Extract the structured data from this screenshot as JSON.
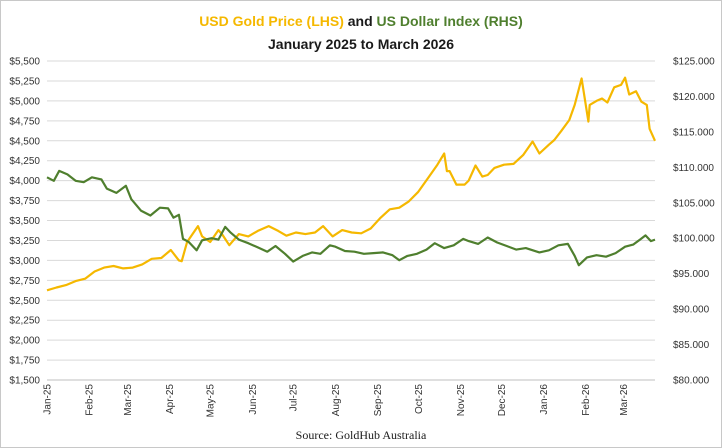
{
  "title": {
    "part1": "USD Gold Price (LHS)",
    "part2": " and ",
    "part3": "US Dollar Index (RHS)"
  },
  "subtitle": "January 2025 to March 2026",
  "source": "Source: GoldHub Australia",
  "colors": {
    "gold": "#f5b800",
    "dxy": "#4f7f2e",
    "grid": "#d9d9d9"
  },
  "chart_data": {
    "type": "line",
    "title": "USD Gold Price (LHS) and US Dollar Index (RHS)",
    "subtitle": "January 2025 to March 2026",
    "x_range": [
      "2025-01-01",
      "2026-03-24"
    ],
    "y_left": {
      "min": 1500,
      "max": 5500,
      "ticks": [
        "$1,500",
        "$1,750",
        "$2,000",
        "$2,250",
        "$2,500",
        "$2,750",
        "$3,000",
        "$3,250",
        "$3,500",
        "$3,750",
        "$4,000",
        "$4,250",
        "$4,500",
        "$4,750",
        "$5,000",
        "$5,250",
        "$5,500"
      ]
    },
    "y_right": {
      "min": 80,
      "max": 125,
      "ticks": [
        "$80.000",
        "$85.000",
        "$90.000",
        "$95.000",
        "$100.000",
        "$105.000",
        "$110.000",
        "$115.000",
        "$120.000",
        "$125.000"
      ]
    },
    "x_ticks": [
      "Jan-25",
      "Feb-25",
      "Mar-25",
      "Apr-25",
      "May-25",
      "Jun-25",
      "Jul-25",
      "Aug-25",
      "Sep-25",
      "Oct-25",
      "Nov-25",
      "Dec-25",
      "Jan-26",
      "Feb-26",
      "Mar-26"
    ],
    "grid": true,
    "series": [
      {
        "name": "USD Gold Price (LHS)",
        "axis": "left",
        "points": [
          [
            "2025-01-01",
            2625
          ],
          [
            "2025-01-08",
            2660
          ],
          [
            "2025-01-15",
            2690
          ],
          [
            "2025-01-22",
            2740
          ],
          [
            "2025-01-29",
            2770
          ],
          [
            "2025-02-05",
            2860
          ],
          [
            "2025-02-12",
            2910
          ],
          [
            "2025-02-19",
            2930
          ],
          [
            "2025-02-26",
            2900
          ],
          [
            "2025-03-05",
            2910
          ],
          [
            "2025-03-12",
            2950
          ],
          [
            "2025-03-19",
            3020
          ],
          [
            "2025-03-26",
            3030
          ],
          [
            "2025-04-02",
            3130
          ],
          [
            "2025-04-08",
            3000
          ],
          [
            "2025-04-10",
            2990
          ],
          [
            "2025-04-14",
            3230
          ],
          [
            "2025-04-18",
            3330
          ],
          [
            "2025-04-22",
            3430
          ],
          [
            "2025-04-25",
            3300
          ],
          [
            "2025-05-01",
            3230
          ],
          [
            "2025-05-07",
            3380
          ],
          [
            "2025-05-10",
            3320
          ],
          [
            "2025-05-15",
            3190
          ],
          [
            "2025-05-22",
            3330
          ],
          [
            "2025-05-29",
            3300
          ],
          [
            "2025-06-05",
            3370
          ],
          [
            "2025-06-13",
            3430
          ],
          [
            "2025-06-20",
            3370
          ],
          [
            "2025-06-26",
            3310
          ],
          [
            "2025-07-03",
            3350
          ],
          [
            "2025-07-10",
            3330
          ],
          [
            "2025-07-17",
            3350
          ],
          [
            "2025-07-23",
            3430
          ],
          [
            "2025-07-30",
            3300
          ],
          [
            "2025-08-06",
            3380
          ],
          [
            "2025-08-13",
            3350
          ],
          [
            "2025-08-20",
            3340
          ],
          [
            "2025-08-27",
            3400
          ],
          [
            "2025-09-03",
            3530
          ],
          [
            "2025-09-10",
            3640
          ],
          [
            "2025-09-17",
            3660
          ],
          [
            "2025-09-24",
            3740
          ],
          [
            "2025-10-01",
            3860
          ],
          [
            "2025-10-08",
            4030
          ],
          [
            "2025-10-15",
            4200
          ],
          [
            "2025-10-20",
            4340
          ],
          [
            "2025-10-22",
            4120
          ],
          [
            "2025-10-24",
            4120
          ],
          [
            "2025-10-29",
            3950
          ],
          [
            "2025-11-04",
            3950
          ],
          [
            "2025-11-07",
            4000
          ],
          [
            "2025-11-12",
            4190
          ],
          [
            "2025-11-17",
            4050
          ],
          [
            "2025-11-21",
            4070
          ],
          [
            "2025-11-26",
            4160
          ],
          [
            "2025-12-03",
            4200
          ],
          [
            "2025-12-10",
            4210
          ],
          [
            "2025-12-17",
            4320
          ],
          [
            "2025-12-24",
            4490
          ],
          [
            "2025-12-29",
            4340
          ],
          [
            "2026-01-05",
            4450
          ],
          [
            "2026-01-09",
            4510
          ],
          [
            "2026-01-14",
            4620
          ],
          [
            "2026-01-20",
            4760
          ],
          [
            "2026-01-24",
            4950
          ],
          [
            "2026-01-29",
            5280
          ],
          [
            "2026-02-03",
            4740
          ],
          [
            "2026-02-04",
            4950
          ],
          [
            "2026-02-09",
            5000
          ],
          [
            "2026-02-13",
            5030
          ],
          [
            "2026-02-17",
            4980
          ],
          [
            "2026-02-22",
            5170
          ],
          [
            "2026-02-27",
            5200
          ],
          [
            "2026-03-02",
            5290
          ],
          [
            "2026-03-05",
            5080
          ],
          [
            "2026-03-10",
            5120
          ],
          [
            "2026-03-14",
            4990
          ],
          [
            "2026-03-18",
            4950
          ],
          [
            "2026-03-20",
            4650
          ],
          [
            "2026-03-24",
            4500
          ]
        ]
      },
      {
        "name": "US Dollar Index (RHS)",
        "axis": "right",
        "points": [
          [
            "2025-01-01",
            108.6
          ],
          [
            "2025-01-06",
            108.1
          ],
          [
            "2025-01-10",
            109.5
          ],
          [
            "2025-01-16",
            109.0
          ],
          [
            "2025-01-22",
            108.1
          ],
          [
            "2025-01-28",
            107.9
          ],
          [
            "2025-02-03",
            108.6
          ],
          [
            "2025-02-10",
            108.3
          ],
          [
            "2025-02-14",
            107.0
          ],
          [
            "2025-02-21",
            106.4
          ],
          [
            "2025-02-28",
            107.4
          ],
          [
            "2025-03-04",
            105.5
          ],
          [
            "2025-03-11",
            103.9
          ],
          [
            "2025-03-18",
            103.2
          ],
          [
            "2025-03-25",
            104.3
          ],
          [
            "2025-03-31",
            104.2
          ],
          [
            "2025-04-04",
            102.9
          ],
          [
            "2025-04-08",
            103.3
          ],
          [
            "2025-04-11",
            99.9
          ],
          [
            "2025-04-15",
            99.5
          ],
          [
            "2025-04-21",
            98.3
          ],
          [
            "2025-04-25",
            99.7
          ],
          [
            "2025-05-02",
            100.0
          ],
          [
            "2025-05-07",
            99.8
          ],
          [
            "2025-05-12",
            101.6
          ],
          [
            "2025-05-16",
            100.8
          ],
          [
            "2025-05-22",
            99.8
          ],
          [
            "2025-05-29",
            99.3
          ],
          [
            "2025-06-05",
            98.7
          ],
          [
            "2025-06-12",
            98.1
          ],
          [
            "2025-06-18",
            98.9
          ],
          [
            "2025-06-25",
            97.8
          ],
          [
            "2025-07-01",
            96.7
          ],
          [
            "2025-07-08",
            97.5
          ],
          [
            "2025-07-15",
            98.0
          ],
          [
            "2025-07-21",
            97.8
          ],
          [
            "2025-07-28",
            99.0
          ],
          [
            "2025-08-01",
            98.8
          ],
          [
            "2025-08-08",
            98.2
          ],
          [
            "2025-08-15",
            98.1
          ],
          [
            "2025-08-22",
            97.8
          ],
          [
            "2025-08-29",
            97.9
          ],
          [
            "2025-09-05",
            98.0
          ],
          [
            "2025-09-12",
            97.6
          ],
          [
            "2025-09-17",
            96.9
          ],
          [
            "2025-09-23",
            97.5
          ],
          [
            "2025-09-30",
            97.8
          ],
          [
            "2025-10-07",
            98.4
          ],
          [
            "2025-10-13",
            99.3
          ],
          [
            "2025-10-20",
            98.6
          ],
          [
            "2025-10-27",
            99.0
          ],
          [
            "2025-11-03",
            99.9
          ],
          [
            "2025-11-07",
            99.6
          ],
          [
            "2025-11-14",
            99.2
          ],
          [
            "2025-11-21",
            100.1
          ],
          [
            "2025-11-28",
            99.4
          ],
          [
            "2025-12-05",
            98.9
          ],
          [
            "2025-12-12",
            98.4
          ],
          [
            "2025-12-19",
            98.6
          ],
          [
            "2025-12-29",
            98.0
          ],
          [
            "2026-01-05",
            98.3
          ],
          [
            "2026-01-12",
            99.0
          ],
          [
            "2026-01-19",
            99.2
          ],
          [
            "2026-01-24",
            97.5
          ],
          [
            "2026-01-27",
            96.2
          ],
          [
            "2026-02-02",
            97.3
          ],
          [
            "2026-02-09",
            97.6
          ],
          [
            "2026-02-16",
            97.4
          ],
          [
            "2026-02-23",
            97.9
          ],
          [
            "2026-03-02",
            98.8
          ],
          [
            "2026-03-08",
            99.1
          ],
          [
            "2026-03-13",
            99.8
          ],
          [
            "2026-03-17",
            100.4
          ],
          [
            "2026-03-21",
            99.6
          ],
          [
            "2026-03-24",
            99.8
          ]
        ]
      }
    ]
  }
}
